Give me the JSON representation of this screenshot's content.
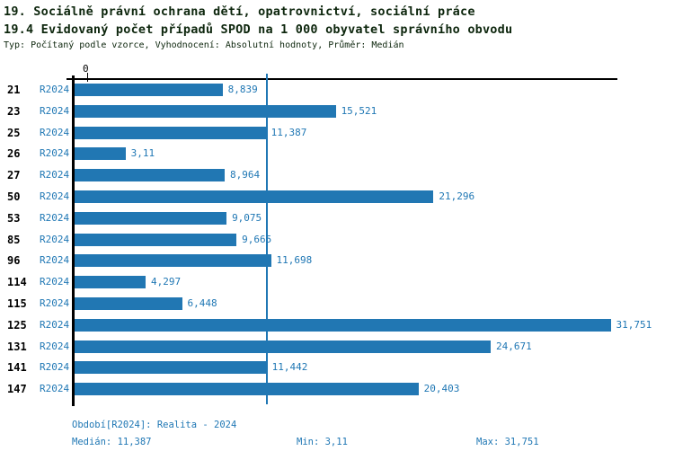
{
  "header": {
    "title": "19. Sociálně právní ochrana dětí, opatrovnictví, sociální práce",
    "subtitle": "19.4 Evidovaný počet případů SPOD na 1 000 obyvatel správního obvodu",
    "meta": "Typ: Počítaný podle vzorce, Vyhodnocení: Absolutní hodnoty, Průměr: Medián"
  },
  "chart_data": {
    "type": "bar",
    "orientation": "horizontal",
    "title": "19.4 Evidovaný počet případů SPOD na 1 000 obyvatel správního obvodu",
    "categories": [
      "21",
      "23",
      "25",
      "26",
      "27",
      "50",
      "53",
      "85",
      "96",
      "114",
      "115",
      "125",
      "131",
      "141",
      "147"
    ],
    "series_label": "R2024",
    "values": [
      8.839,
      15.521,
      11.387,
      3.11,
      8.964,
      21.296,
      9.075,
      9.665,
      11.698,
      4.297,
      6.448,
      31.751,
      24.671,
      11.442,
      20.403
    ],
    "value_labels": [
      "8,839",
      "15,521",
      "11,387",
      "3,11",
      "8,964",
      "21,296",
      "9,075",
      "9,665",
      "11,698",
      "4,297",
      "6,448",
      "31,751",
      "24,671",
      "11,442",
      "20,403"
    ],
    "xlim": [
      0,
      32
    ],
    "axis_zero_label": "0",
    "median_line_value": 11.387,
    "grid": false,
    "legend_position": "none",
    "bar_color": "#2177b3"
  },
  "footer": {
    "period": "Období[R2024]: Realita - 2024",
    "median": "Medián: 11,387",
    "min": "Min: 3,11",
    "max": "Max: 31,751"
  },
  "colors": {
    "accent_blue": "#1f77b4",
    "bar_blue": "#2177b3",
    "header_text": "#0d260d",
    "axis_black": "#000000"
  }
}
